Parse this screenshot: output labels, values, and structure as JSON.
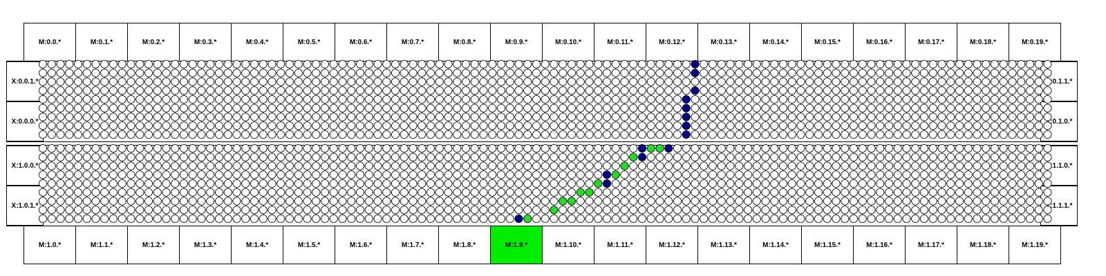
{
  "top_modules": [
    "M:0.0.*",
    "M:0.1.*",
    "M:0.2.*",
    "M:0.3.*",
    "M:0.4.*",
    "M:0.5.*",
    "M:0.6.*",
    "M:0.7.*",
    "M:0.8.*",
    "M:0.9.*",
    "M:0.10.*",
    "M:0.11.*",
    "M:0.12.*",
    "M:0.13.*",
    "M:0.14.*",
    "M:0.15.*",
    "M:0.16.*",
    "M:0.17.*",
    "M:0.18.*",
    "M:0.19.*"
  ],
  "bottom_modules": [
    "M:1.0.*",
    "M:1.1.*",
    "M:1.2.*",
    "M:1.3.*",
    "M:1.4.*",
    "M:1.5.*",
    "M:1.6.*",
    "M:1.7.*",
    "M:1.8.*",
    "M:1.9.*",
    "M:1.10.*",
    "M:1.11.*",
    "M:1.12.*",
    "M:1.13.*",
    "M:1.14.*",
    "M:1.15.*",
    "M:1.16.*",
    "M:1.17.*",
    "M:1.18.*",
    "M:1.19.*"
  ],
  "bottom_highlighted_index": 9,
  "left_labels": [
    "X:0.0.1.*",
    "X:0.0.0.*",
    "X:1.0.0.*",
    "X:1.0.1.*"
  ],
  "right_labels": [
    "X:0.1.1.*",
    "X:0.1.0.*",
    "X:1.1.0.*",
    "X:1.1.1.*"
  ],
  "grid": {
    "columns": 115,
    "rows_per_panel": 9,
    "panels": 2
  },
  "colors": {
    "highlight": "#00ee00",
    "node_blue": "#00008b",
    "node_green": "#22dd22",
    "node_empty": "#ffffff",
    "line": "#000000"
  },
  "blue_nodes": [
    {
      "panel": 0,
      "col": 74,
      "row": 0
    },
    {
      "panel": 0,
      "col": 74,
      "row": 1
    },
    {
      "panel": 0,
      "col": 74,
      "row": 3
    },
    {
      "panel": 0,
      "col": 73,
      "row": 4
    },
    {
      "panel": 0,
      "col": 73,
      "row": 5
    },
    {
      "panel": 0,
      "col": 73,
      "row": 6
    },
    {
      "panel": 0,
      "col": 73,
      "row": 7
    },
    {
      "panel": 0,
      "col": 73,
      "row": 8
    },
    {
      "panel": 1,
      "col": 68,
      "row": 0
    },
    {
      "panel": 1,
      "col": 71,
      "row": 0
    },
    {
      "panel": 1,
      "col": 68,
      "row": 1
    },
    {
      "panel": 1,
      "col": 64,
      "row": 3
    },
    {
      "panel": 1,
      "col": 64,
      "row": 4
    },
    {
      "panel": 1,
      "col": 54,
      "row": 8
    }
  ],
  "green_nodes": [
    {
      "panel": 1,
      "col": 69,
      "row": 0
    },
    {
      "panel": 1,
      "col": 70,
      "row": 0
    },
    {
      "panel": 1,
      "col": 67,
      "row": 1
    },
    {
      "panel": 1,
      "col": 66,
      "row": 2
    },
    {
      "panel": 1,
      "col": 65,
      "row": 3
    },
    {
      "panel": 1,
      "col": 63,
      "row": 4
    },
    {
      "panel": 1,
      "col": 61,
      "row": 5
    },
    {
      "panel": 1,
      "col": 62,
      "row": 5
    },
    {
      "panel": 1,
      "col": 59,
      "row": 6
    },
    {
      "panel": 1,
      "col": 60,
      "row": 6
    },
    {
      "panel": 1,
      "col": 58,
      "row": 7
    },
    {
      "panel": 1,
      "col": 55,
      "row": 8
    }
  ]
}
